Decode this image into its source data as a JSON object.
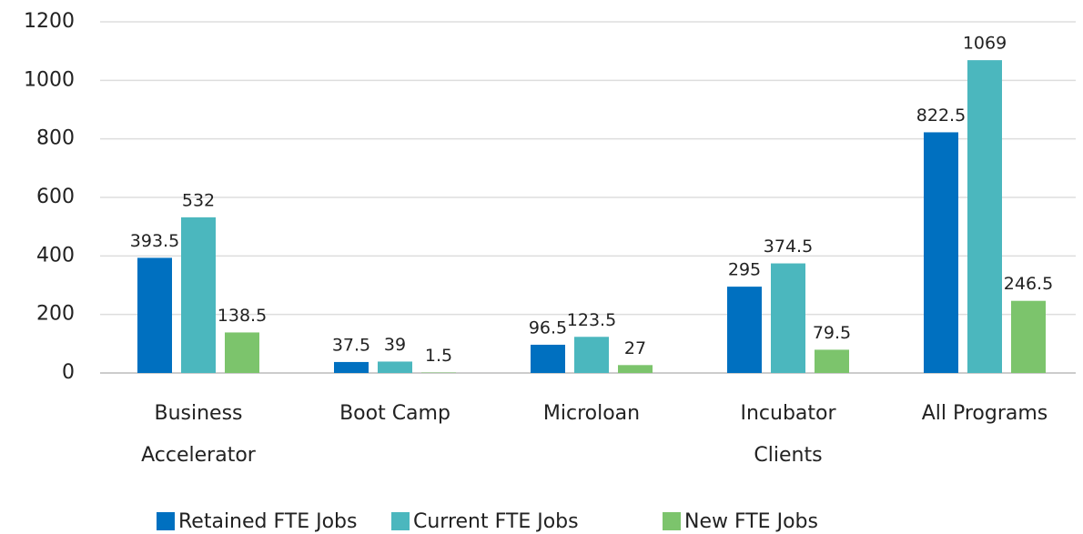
{
  "chart_data": {
    "type": "bar",
    "categories": [
      [
        "Business",
        "Accelerator"
      ],
      [
        "Boot Camp"
      ],
      [
        "Microloan"
      ],
      [
        "Incubator",
        "Clients"
      ],
      [
        "All Programs"
      ]
    ],
    "series": [
      {
        "name": "Retained FTE Jobs",
        "color": "#0070c0",
        "values": [
          393.5,
          37.5,
          96.5,
          295,
          822.5
        ]
      },
      {
        "name": "Current FTE Jobs",
        "color": "#4bb7be",
        "values": [
          532,
          39,
          123.5,
          374.5,
          1069
        ]
      },
      {
        "name": "New FTE Jobs",
        "color": "#7cc46c",
        "values": [
          138.5,
          1.5,
          27,
          79.5,
          246.5
        ]
      }
    ],
    "ylim": [
      0,
      1200
    ],
    "yticks": [
      0,
      200,
      400,
      600,
      800,
      1000,
      1200
    ],
    "grid": true,
    "legend": "bottom"
  }
}
